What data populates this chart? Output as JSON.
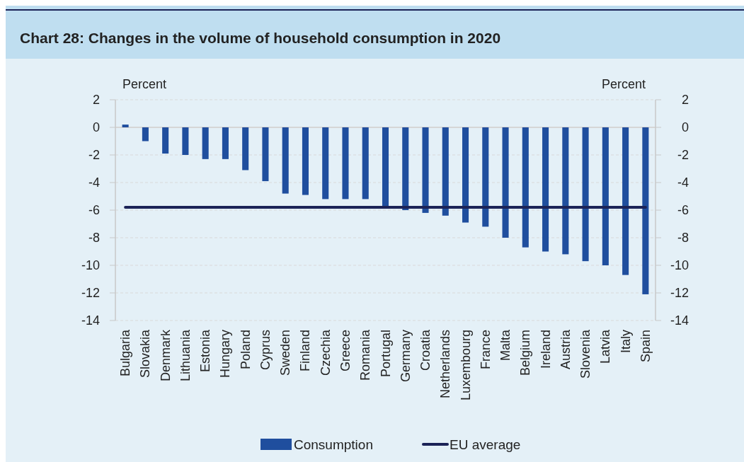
{
  "chart_data": {
    "type": "bar",
    "title": "Chart 28: Changes in the volume of household consumption in 2020",
    "ylabel": "Percent",
    "y2label": "Percent",
    "categories": [
      "Bulgaria",
      "Slovakia",
      "Denmark",
      "Lithuania",
      "Estonia",
      "Hungary",
      "Poland",
      "Cyprus",
      "Sweden",
      "Finland",
      "Czechia",
      "Greece",
      "Romania",
      "Portugal",
      "Germany",
      "Croatia",
      "Netherlands",
      "Luxembourg",
      "France",
      "Malta",
      "Belgium",
      "Ireland",
      "Austria",
      "Slovenia",
      "Latvia",
      "Italy",
      "Spain"
    ],
    "series": [
      {
        "name": "Consumption",
        "color": "#1f4e9e",
        "values": [
          0.2,
          -1.0,
          -1.9,
          -2.0,
          -2.3,
          -2.3,
          -3.1,
          -3.9,
          -4.8,
          -4.9,
          -5.2,
          -5.2,
          -5.2,
          -5.8,
          -6.0,
          -6.2,
          -6.4,
          -6.9,
          -7.2,
          -8.0,
          -8.7,
          -9.0,
          -9.2,
          -9.7,
          -10.0,
          -10.7,
          -12.1
        ]
      },
      {
        "name": "EU average",
        "type": "line",
        "color": "#1b2357",
        "values": [
          -5.8,
          -5.8,
          -5.8,
          -5.8,
          -5.8,
          -5.8,
          -5.8,
          -5.8,
          -5.8,
          -5.8,
          -5.8,
          -5.8,
          -5.8,
          -5.8,
          -5.8,
          -5.8,
          -5.8,
          -5.8,
          -5.8,
          -5.8,
          -5.8,
          -5.8,
          -5.8,
          -5.8,
          -5.8,
          -5.8,
          -5.8
        ]
      }
    ],
    "ylim": [
      -14,
      2
    ],
    "yticks": [
      -14,
      -12,
      -10,
      -8,
      -6,
      -4,
      -2,
      0,
      2
    ],
    "y2lim": [
      -14,
      2
    ],
    "y2ticks": [
      -14,
      -12,
      -10,
      -8,
      -6,
      -4,
      -2,
      0,
      2
    ],
    "grid": "y",
    "legend": "bottom",
    "marker": "none",
    "line_style": "solid"
  }
}
